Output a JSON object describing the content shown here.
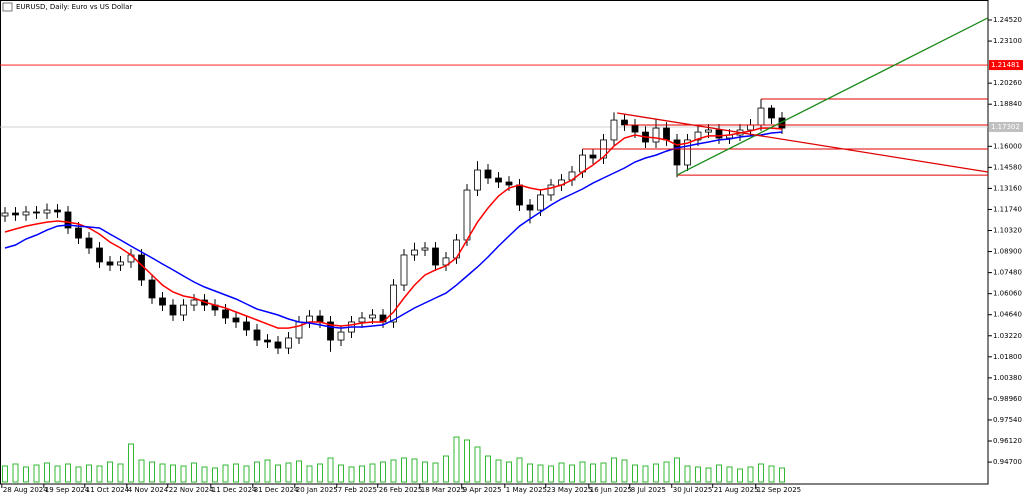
{
  "chart_data": {
    "type": "candlestick",
    "title": "EURUSD, Daily:  Euro vs US Dollar",
    "xlim": [
      -0.476,
      93.62
    ],
    "ylim": [
      0.9322,
      1.2587
    ],
    "open": [
      1.113,
      1.115,
      1.1137,
      1.1157,
      1.115,
      1.117,
      1.1157,
      1.1049,
      1.0981,
      1.0914,
      1.082,
      1.0799,
      1.082,
      1.0867,
      1.0698,
      1.0577,
      1.0529,
      1.0462,
      1.0529,
      1.0563,
      1.0529,
      1.0496,
      1.0442,
      1.0415,
      1.0361,
      1.0293,
      1.028,
      1.0239,
      1.0307,
      1.0415,
      1.0455,
      1.0415,
      1.0293,
      1.0347,
      1.0415,
      1.0442,
      1.0462,
      1.0415,
      1.0664,
      1.0867,
      1.09,
      1.0914,
      1.0799,
      1.0847,
      1.0968,
      1.1305,
      1.144,
      1.1386,
      1.1359,
      1.1339,
      1.1204,
      1.117,
      1.1272,
      1.1339,
      1.1373,
      1.1427,
      1.1541,
      1.1521,
      1.1643,
      1.1777,
      1.1744,
      1.1696,
      1.1629,
      1.1723,
      1.1643,
      1.1474,
      1.1643,
      1.1696,
      1.171,
      1.1656,
      1.1676,
      1.171,
      1.1744,
      1.1858,
      1.1791
    ],
    "high": [
      1.119,
      1.119,
      1.1197,
      1.1197,
      1.1214,
      1.121,
      1.1197,
      1.1089,
      1.1021,
      1.0954,
      1.086,
      1.086,
      1.0907,
      1.0907,
      1.0738,
      1.0617,
      1.0569,
      1.0569,
      1.0603,
      1.0603,
      1.0569,
      1.0536,
      1.0482,
      1.0455,
      1.0401,
      1.0333,
      1.032,
      1.0347,
      1.0455,
      1.0495,
      1.0495,
      1.0455,
      1.0387,
      1.0455,
      1.0482,
      1.0502,
      1.0502,
      1.0704,
      1.0907,
      1.095,
      1.0954,
      1.0954,
      1.0887,
      1.1008,
      1.1345,
      1.15,
      1.148,
      1.1426,
      1.1399,
      1.1379,
      1.1244,
      1.1312,
      1.1379,
      1.1413,
      1.1467,
      1.1581,
      1.1581,
      1.1683,
      1.1829,
      1.1817,
      1.1784,
      1.1736,
      1.1788,
      1.1763,
      1.1683,
      1.1683,
      1.1736,
      1.175,
      1.175,
      1.1716,
      1.175,
      1.1784,
      1.1918,
      1.1878,
      1.1831
    ],
    "low": [
      1.109,
      1.1097,
      1.1097,
      1.111,
      1.111,
      1.1117,
      1.1009,
      1.0941,
      1.0874,
      1.078,
      1.0759,
      1.0759,
      1.078,
      1.0658,
      1.0537,
      1.0489,
      1.0422,
      1.0422,
      1.0489,
      1.0489,
      1.0456,
      1.0402,
      1.0375,
      1.0321,
      1.0253,
      1.024,
      1.0199,
      1.0199,
      1.0267,
      1.0375,
      1.0375,
      1.0214,
      1.0253,
      1.0307,
      1.0375,
      1.0402,
      1.0375,
      1.0375,
      1.0624,
      1.0827,
      1.086,
      1.0759,
      1.0759,
      1.0807,
      1.0928,
      1.1265,
      1.1346,
      1.1319,
      1.1299,
      1.1164,
      1.108,
      1.113,
      1.1232,
      1.1299,
      1.1333,
      1.1387,
      1.1481,
      1.1481,
      1.1603,
      1.1704,
      1.1656,
      1.1589,
      1.1589,
      1.1603,
      1.1391,
      1.1434,
      1.1603,
      1.1656,
      1.1616,
      1.1616,
      1.1636,
      1.167,
      1.1704,
      1.1751,
      1.1683
    ],
    "close": [
      1.115,
      1.1137,
      1.1157,
      1.115,
      1.117,
      1.1157,
      1.1049,
      1.0981,
      1.0914,
      1.082,
      1.0799,
      1.082,
      1.0867,
      1.0698,
      1.0577,
      1.0529,
      1.0462,
      1.0529,
      1.0563,
      1.0529,
      1.0496,
      1.0442,
      1.0415,
      1.0361,
      1.0293,
      1.028,
      1.0239,
      1.0307,
      1.0415,
      1.0455,
      1.0415,
      1.0293,
      1.0347,
      1.0415,
      1.0442,
      1.0462,
      1.0415,
      1.0664,
      1.0867,
      1.09,
      1.0914,
      1.0799,
      1.0847,
      1.0968,
      1.1305,
      1.144,
      1.1386,
      1.1359,
      1.1339,
      1.1204,
      1.117,
      1.1272,
      1.1339,
      1.1373,
      1.1427,
      1.1541,
      1.1521,
      1.1643,
      1.1777,
      1.1744,
      1.1696,
      1.1629,
      1.1723,
      1.1643,
      1.1474,
      1.1643,
      1.1696,
      1.171,
      1.1656,
      1.1676,
      1.171,
      1.1744,
      1.1858,
      1.1791,
      1.1723
    ],
    "volume": [
      16,
      18,
      15,
      17,
      19,
      16,
      18,
      15,
      17,
      16,
      20,
      18,
      38,
      22,
      20,
      18,
      17,
      16,
      19,
      15,
      14,
      17,
      18,
      16,
      20,
      22,
      17,
      19,
      21,
      16,
      18,
      24,
      17,
      15,
      16,
      18,
      20,
      22,
      24,
      23,
      20,
      19,
      26,
      45,
      42,
      35,
      26,
      22,
      20,
      24,
      18,
      17,
      16,
      19,
      17,
      20,
      18,
      19,
      24,
      22,
      17,
      16,
      18,
      20,
      24,
      16,
      15,
      14,
      17,
      15,
      13,
      15,
      18,
      16,
      14
    ],
    "volume_color": "#33b833",
    "ma_lines": [
      {
        "color": "#ff0000",
        "values": [
          1.1022,
          1.1042,
          1.1062,
          1.1076,
          1.1089,
          1.1096,
          1.1089,
          1.1076,
          1.1049,
          1.1008,
          1.0954,
          1.0914,
          1.0867,
          1.0799,
          1.0732,
          1.0664,
          1.0617,
          1.059,
          1.0577,
          1.055,
          1.0529,
          1.0509,
          1.0482,
          1.0455,
          1.0428,
          1.0401,
          1.0374,
          1.0374,
          1.0388,
          1.0415,
          1.0415,
          1.0395,
          1.0388,
          1.0395,
          1.0408,
          1.0415,
          1.0415,
          1.0482,
          1.0577,
          1.0664,
          1.0732,
          1.0766,
          1.0793,
          1.0847,
          1.0968,
          1.1089,
          1.1184,
          1.1265,
          1.1319,
          1.1339,
          1.1319,
          1.1305,
          1.1319,
          1.1339,
          1.1373,
          1.1427,
          1.1474,
          1.1528,
          1.1602,
          1.1656,
          1.1676,
          1.1663,
          1.1656,
          1.1643,
          1.1609,
          1.1622,
          1.1649,
          1.167,
          1.167,
          1.1676,
          1.169,
          1.1703,
          1.1723,
          1.1723,
          1.1717
        ]
      },
      {
        "color": "#0000ff",
        "values": [
          1.0914,
          1.0934,
          1.0975,
          1.1002,
          1.1035,
          1.1062,
          1.1069,
          1.1062,
          1.1056,
          1.1049,
          1.1008,
          1.0968,
          1.0927,
          1.0887,
          1.0847,
          1.0806,
          1.0766,
          1.0725,
          1.0685,
          1.0651,
          1.0624,
          1.0597,
          1.057,
          1.0536,
          1.0502,
          1.0482,
          1.0462,
          1.0435,
          1.0415,
          1.0408,
          1.0395,
          1.0381,
          1.0374,
          1.0381,
          1.0381,
          1.0388,
          1.0395,
          1.0428,
          1.0469,
          1.0509,
          1.0543,
          1.0577,
          1.061,
          1.0664,
          1.0725,
          1.0786,
          1.0853,
          1.0927,
          1.0995,
          1.1062,
          1.111,
          1.1157,
          1.1204,
          1.1245,
          1.1278,
          1.1312,
          1.1352,
          1.1386,
          1.142,
          1.1454,
          1.1494,
          1.1521,
          1.1541,
          1.1568,
          1.1589,
          1.1602,
          1.1616,
          1.1629,
          1.1643,
          1.1649,
          1.1663,
          1.167,
          1.1676,
          1.169,
          1.1696
        ]
      }
    ],
    "level_lines": [
      {
        "value": 1.1919,
        "from": 72,
        "color": "#e00000"
      },
      {
        "value": 1.1744,
        "from": 59,
        "color": "#e00000"
      },
      {
        "value": 1.1582,
        "from": 55,
        "color": "#e00000"
      },
      {
        "value": 1.1406,
        "from": 64,
        "color": "#e00000"
      }
    ],
    "trend_lines": [
      {
        "color": "#1a8a1a",
        "points": [
          [
            64,
            1.1406
          ],
          [
            93.6,
            1.2466
          ]
        ]
      },
      {
        "color": "#e00000",
        "points": [
          [
            58.3,
            1.1825
          ],
          [
            93.6,
            1.1427
          ]
        ]
      }
    ],
    "alert_level": {
      "value": 1.21481,
      "color": "#ff0000"
    },
    "current_price": {
      "value": 1.17302,
      "color": "#c0c0c0"
    },
    "yticks": [
      {
        "value": 1.2452,
        "label": "1.24520"
      },
      {
        "value": 1.231,
        "label": "1.23100"
      },
      {
        "value": 1.2026,
        "label": "1.20260"
      },
      {
        "value": 1.1884,
        "label": "1.18840"
      },
      {
        "value": 1.16,
        "label": "1.16000"
      },
      {
        "value": 1.1458,
        "label": "1.14580"
      },
      {
        "value": 1.1316,
        "label": "1.13160"
      },
      {
        "value": 1.1174,
        "label": "1.11740"
      },
      {
        "value": 1.1032,
        "label": "1.10320"
      },
      {
        "value": 1.089,
        "label": "1.08900"
      },
      {
        "value": 1.0748,
        "label": "1.07480"
      },
      {
        "value": 1.0606,
        "label": "1.06060"
      },
      {
        "value": 1.0464,
        "label": "1.04640"
      },
      {
        "value": 1.0322,
        "label": "1.03220"
      },
      {
        "value": 1.018,
        "label": "1.01800"
      },
      {
        "value": 1.0038,
        "label": "1.00380"
      },
      {
        "value": 0.9896,
        "label": "0.98960"
      },
      {
        "value": 0.9754,
        "label": "0.97540"
      },
      {
        "value": 0.9612,
        "label": "0.96120"
      },
      {
        "value": 0.947,
        "label": "0.94700"
      }
    ],
    "xticks": [
      {
        "value": -0.3,
        "label": "28 Aug 2024"
      },
      {
        "value": 3.7,
        "label": "19 Sep 2024"
      },
      {
        "value": 7.6,
        "label": "11 Oct 2024"
      },
      {
        "value": 11.6,
        "label": "4 Nov 2024"
      },
      {
        "value": 15.5,
        "label": "22 Nov 2024"
      },
      {
        "value": 19.6,
        "label": "11 Dec 2024"
      },
      {
        "value": 23.6,
        "label": "31 Dec 2024"
      },
      {
        "value": 27.6,
        "label": "20 Jan 2025"
      },
      {
        "value": 31.6,
        "label": "7 Feb 2025"
      },
      {
        "value": 35.5,
        "label": "26 Feb 2025"
      },
      {
        "value": 39.5,
        "label": "18 Mar 2025"
      },
      {
        "value": 43.5,
        "label": "9 Apr 2025"
      },
      {
        "value": 47.6,
        "label": "1 May 2025"
      },
      {
        "value": 51.5,
        "label": "23 May 2025"
      },
      {
        "value": 55.6,
        "label": "16 Jun 2025"
      },
      {
        "value": 59.5,
        "label": "8 Jul 2025"
      },
      {
        "value": 63.5,
        "label": "30 Jul 2025"
      },
      {
        "value": 67.4,
        "label": "21 Aug 2025"
      },
      {
        "value": 71.5,
        "label": "12 Sep 2025"
      }
    ]
  }
}
